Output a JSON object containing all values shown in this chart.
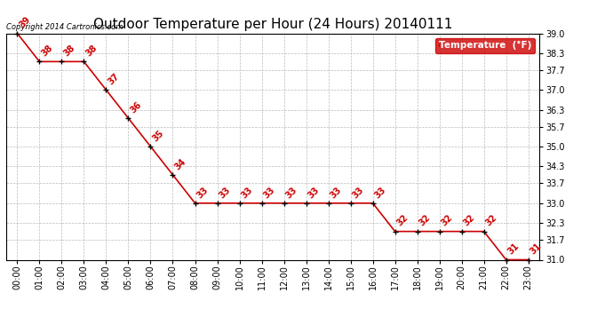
{
  "title": "Outdoor Temperature per Hour (24 Hours) 20140111",
  "hours": [
    "00:00",
    "01:00",
    "02:00",
    "03:00",
    "04:00",
    "05:00",
    "06:00",
    "07:00",
    "08:00",
    "09:00",
    "10:00",
    "11:00",
    "12:00",
    "13:00",
    "14:00",
    "15:00",
    "16:00",
    "17:00",
    "18:00",
    "19:00",
    "20:00",
    "21:00",
    "22:00",
    "23:00"
  ],
  "temperatures": [
    39,
    38,
    38,
    38,
    37,
    36,
    35,
    34,
    33,
    33,
    33,
    33,
    33,
    33,
    33,
    33,
    33,
    32,
    32,
    32,
    32,
    32,
    31,
    31
  ],
  "line_color": "#cc0000",
  "marker_color": "#000000",
  "label_color": "#cc0000",
  "ylim_min": 31.0,
  "ylim_max": 39.0,
  "yticks": [
    31.0,
    31.7,
    32.3,
    33.0,
    33.7,
    34.3,
    35.0,
    35.7,
    36.3,
    37.0,
    37.7,
    38.3,
    39.0
  ],
  "copyright_text": "Copyright 2014 Cartronics.com",
  "legend_label": "Temperature  (°F)",
  "bg_color": "#ffffff",
  "grid_color": "#aaaaaa",
  "title_fontsize": 11,
  "tick_fontsize": 7,
  "label_fontsize": 7.5,
  "annot_fontsize": 7
}
